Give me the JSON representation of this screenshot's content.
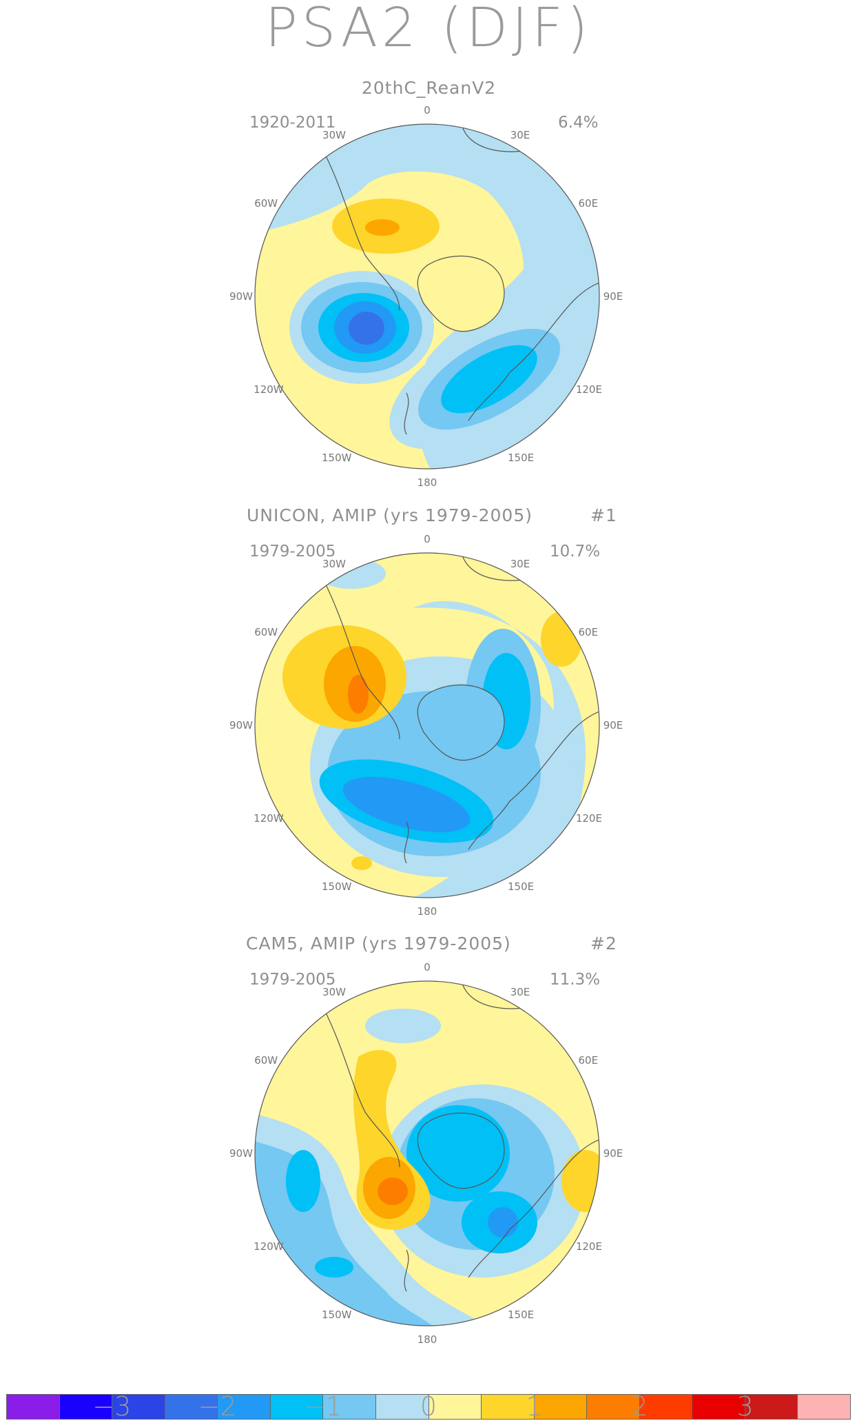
{
  "title": "PSA2 (DJF)",
  "panels": [
    {
      "title": "20thC_ReanV2",
      "number": "",
      "period": "1920-2011",
      "percent": "6.4%"
    },
    {
      "title": "UNICON, AMIP (yrs 1979-2005)",
      "number": "#1",
      "period": "1979-2005",
      "percent": "10.7%"
    },
    {
      "title": "CAM5, AMIP (yrs 1979-2005)",
      "number": "#2",
      "period": "1979-2005",
      "percent": "11.3%"
    }
  ],
  "lon_labels": {
    "top": "0",
    "tr": "30E",
    "rt": "60E",
    "r": "90E",
    "rb": "120E",
    "br": "150E",
    "bottom": "180",
    "bl": "150W",
    "lb": "120W",
    "l": "90W",
    "lt": "60W",
    "tl": "30W"
  },
  "colorbar": {
    "colors": [
      "#8a1de8",
      "#1a00ff",
      "#2a44e8",
      "#3472ea",
      "#2299f5",
      "#00c0f5",
      "#74c8f2",
      "#b5dff2",
      "#fff59a",
      "#fdd52b",
      "#fca600",
      "#fc7d00",
      "#ff3c00",
      "#e80000",
      "#cc1a1a",
      "#fdb3b3"
    ],
    "tick_labels": [
      "-3",
      "-2",
      "-1",
      "0",
      "1",
      "2",
      "3"
    ]
  },
  "palette": {
    "neg1": "#b5dff2",
    "neg2": "#74c8f2",
    "neg3": "#00c0f5",
    "neg4": "#2299f5",
    "neg5": "#3472ea",
    "pos0": "#fff59a",
    "pos1": "#fdd52b",
    "pos2": "#fca600",
    "pos3": "#fc7d00"
  }
}
